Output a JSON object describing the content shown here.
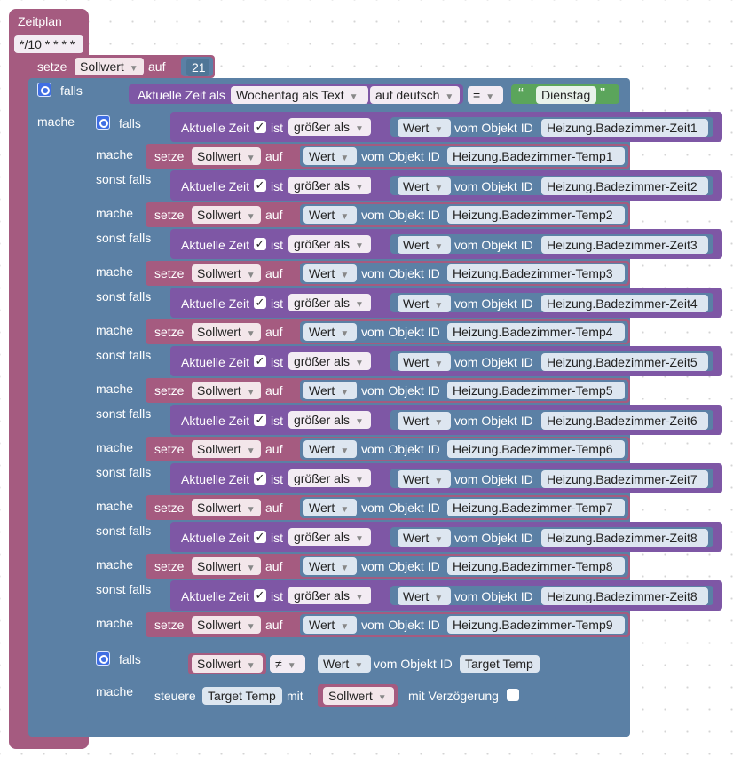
{
  "schedule": {
    "label": "Zeitplan",
    "cron": "*/10 * * * *"
  },
  "set_top": {
    "setze": "setze",
    "var": "Sollwert",
    "auf": "auf",
    "value": "21"
  },
  "outer_if": {
    "falls": "falls",
    "mache": "mache",
    "time_text": "Aktuelle Zeit als",
    "format": "Wochentag als Text",
    "lang": "auf deutsch",
    "op": "=",
    "day": "Dienstag",
    "quote_open": "“",
    "quote_close": "”"
  },
  "inner_if": {
    "falls": "falls",
    "sonst_falls": "sonst falls",
    "mache": "mache",
    "cond_prefix": "Aktuelle Zeit",
    "ist": "ist",
    "cmp": "größer als",
    "wert": "Wert",
    "vom_objekt": "vom Objekt ID",
    "setze": "setze",
    "var": "Sollwert",
    "auf": "auf",
    "branches": [
      {
        "zeit": "Heizung.Badezimmer-Zeit1",
        "temp": "Heizung.Badezimmer-Temp1"
      },
      {
        "zeit": "Heizung.Badezimmer-Zeit2",
        "temp": "Heizung.Badezimmer-Temp2"
      },
      {
        "zeit": "Heizung.Badezimmer-Zeit3",
        "temp": "Heizung.Badezimmer-Temp3"
      },
      {
        "zeit": "Heizung.Badezimmer-Zeit4",
        "temp": "Heizung.Badezimmer-Temp4"
      },
      {
        "zeit": "Heizung.Badezimmer-Zeit5",
        "temp": "Heizung.Badezimmer-Temp5"
      },
      {
        "zeit": "Heizung.Badezimmer-Zeit6",
        "temp": "Heizung.Badezimmer-Temp6"
      },
      {
        "zeit": "Heizung.Badezimmer-Zeit7",
        "temp": "Heizung.Badezimmer-Temp7"
      },
      {
        "zeit": "Heizung.Badezimmer-Zeit8",
        "temp": "Heizung.Badezimmer-Temp8"
      },
      {
        "zeit": "Heizung.Badezimmer-Zeit8",
        "temp": "Heizung.Badezimmer-Temp9"
      }
    ]
  },
  "check_if": {
    "falls": "falls",
    "mache": "mache",
    "var": "Sollwert",
    "op": "≠",
    "wert": "Wert",
    "vom_objekt": "vom Objekt ID",
    "target": "Target Temp",
    "steuere": "steuere",
    "mit": "mit",
    "mit_verz": "mit Verzögerung"
  },
  "colors": {
    "schedule": "#a55b80",
    "set": "#a55b80",
    "logic": "#5b80a5",
    "compare": "#7e57a5",
    "string": "#5ba55b"
  }
}
